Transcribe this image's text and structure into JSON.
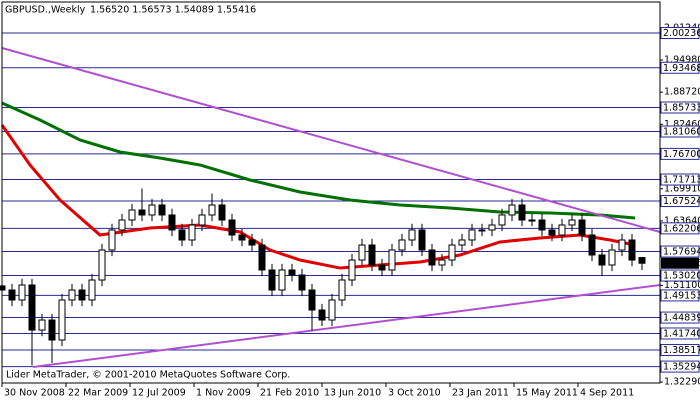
{
  "chart_data": {
    "type": "candlestick",
    "title": "GBPUSD.,Weekly",
    "quote": "1.56520 1.56573 1.54089 1.55416",
    "footer": "Lider MetaTrader, © 2001-2010 MetaQuotes Software Corp.",
    "xlim": [
      0,
      164.5
    ],
    "ylim": [
      1.321,
      2.0627
    ],
    "xticks": [
      {
        "value": 0,
        "label": "30 Nov 2008"
      },
      {
        "value": 16,
        "label": "22 Mar 2009"
      },
      {
        "value": 32,
        "label": "12 Jul 2009"
      },
      {
        "value": 48,
        "label": "1 Nov 2009"
      },
      {
        "value": 64,
        "label": "21 Feb 2010"
      },
      {
        "value": 80,
        "label": "13 Jun 2010"
      },
      {
        "value": 96,
        "label": "3 Oct 2010"
      },
      {
        "value": 112,
        "label": "23 Jan 2011"
      },
      {
        "value": 128,
        "label": "15 May 2011"
      },
      {
        "value": 144,
        "label": "4 Sep 2011"
      }
    ],
    "yticks": [
      {
        "value": 2.0124,
        "label": "2.01240"
      },
      {
        "value": 1.9498,
        "label": "1.94980"
      },
      {
        "value": 1.8872,
        "label": "1.88720"
      },
      {
        "value": 1.8246,
        "label": "1.82460"
      },
      {
        "value": 1.6991,
        "label": "1.69910"
      },
      {
        "value": 1.6364,
        "label": "1.63640"
      },
      {
        "value": 1.511,
        "label": "1.51100"
      },
      {
        "value": 1.3229,
        "label": "1.32290"
      }
    ],
    "up_color": "#ffffff",
    "down_color": "#000000",
    "candle_color": "#000000",
    "x": [
      0,
      2.5,
      5,
      7.5,
      10,
      12.5,
      15,
      17.5,
      20,
      22.5,
      25,
      27.5,
      30,
      32.5,
      35,
      37.5,
      40,
      42.5,
      45,
      47.5,
      50,
      52.5,
      55,
      57.5,
      60,
      62.5,
      65,
      67.5,
      70,
      72.5,
      75,
      77.5,
      80,
      82.5,
      85,
      87.5,
      90,
      92.5,
      95,
      97.5,
      100,
      102.5,
      105,
      107.5,
      110,
      112.5,
      115,
      117.5,
      120,
      122.5,
      125,
      127.5,
      130,
      132.5,
      135,
      137.5,
      140,
      142.5,
      145,
      147.5,
      150,
      152.5,
      155,
      157.5,
      160
    ],
    "ohlc": [
      [
        1.51,
        1.522,
        1.49,
        1.502
      ],
      [
        1.502,
        1.514,
        1.4706,
        1.4826
      ],
      [
        1.4826,
        1.5238,
        1.4706,
        1.5118
      ],
      [
        1.5118,
        1.5238,
        1.355,
        1.4241
      ],
      [
        1.4241,
        1.4556,
        1.4121,
        1.4436
      ],
      [
        1.4436,
        1.4556,
        1.36,
        1.4047
      ],
      [
        1.4047,
        1.4946,
        1.3927,
        1.4826
      ],
      [
        1.4826,
        1.514,
        1.4706,
        1.502
      ],
      [
        1.502,
        1.514,
        1.4706,
        1.4826
      ],
      [
        1.4826,
        1.5335,
        1.4706,
        1.5215
      ],
      [
        1.5215,
        1.5919,
        1.5095,
        1.5799
      ],
      [
        1.5799,
        1.6309,
        1.5679,
        1.6189
      ],
      [
        1.6189,
        1.6503,
        1.6069,
        1.6383
      ],
      [
        1.6383,
        1.6698,
        1.6263,
        1.6578
      ],
      [
        1.6578,
        1.7,
        1.6361,
        1.6481
      ],
      [
        1.6481,
        1.6795,
        1.6361,
        1.6675
      ],
      [
        1.6675,
        1.6795,
        1.6361,
        1.6481
      ],
      [
        1.6481,
        1.6601,
        1.6069,
        1.6189
      ],
      [
        1.6189,
        1.6309,
        1.5874,
        1.5994
      ],
      [
        1.5994,
        1.6406,
        1.5874,
        1.6286
      ],
      [
        1.6286,
        1.6601,
        1.6166,
        1.6481
      ],
      [
        1.6481,
        1.69,
        1.6361,
        1.6675
      ],
      [
        1.6675,
        1.6795,
        1.6263,
        1.6383
      ],
      [
        1.6383,
        1.6503,
        1.5971,
        1.6091
      ],
      [
        1.6091,
        1.6211,
        1.5874,
        1.5994
      ],
      [
        1.5994,
        1.6114,
        1.5776,
        1.5896
      ],
      [
        1.5896,
        1.6016,
        1.529,
        1.541
      ],
      [
        1.541,
        1.553,
        1.49,
        1.502
      ],
      [
        1.502,
        1.553,
        1.49,
        1.541
      ],
      [
        1.541,
        1.553,
        1.5192,
        1.5312
      ],
      [
        1.5312,
        1.5432,
        1.49,
        1.502
      ],
      [
        1.502,
        1.514,
        1.423,
        1.4631
      ],
      [
        1.4631,
        1.4751,
        1.4316,
        1.4436
      ],
      [
        1.4436,
        1.4946,
        1.4316,
        1.4826
      ],
      [
        1.4826,
        1.5335,
        1.4706,
        1.5215
      ],
      [
        1.5215,
        1.5724,
        1.5095,
        1.5604
      ],
      [
        1.5604,
        1.6016,
        1.5484,
        1.5896
      ],
      [
        1.5896,
        1.6016,
        1.5387,
        1.5507
      ],
      [
        1.5507,
        1.5627,
        1.529,
        1.541
      ],
      [
        1.541,
        1.5919,
        1.529,
        1.5799
      ],
      [
        1.5799,
        1.6114,
        1.5679,
        1.5994
      ],
      [
        1.5994,
        1.6309,
        1.5874,
        1.6189
      ],
      [
        1.6189,
        1.6309,
        1.5679,
        1.5799
      ],
      [
        1.5799,
        1.5919,
        1.5387,
        1.5507
      ],
      [
        1.5507,
        1.5724,
        1.5387,
        1.5604
      ],
      [
        1.5604,
        1.6016,
        1.5484,
        1.5896
      ],
      [
        1.5896,
        1.6114,
        1.5776,
        1.5994
      ],
      [
        1.5994,
        1.6309,
        1.5874,
        1.6189
      ],
      [
        1.6189,
        1.6309,
        1.6069,
        1.6189
      ],
      [
        1.6189,
        1.6406,
        1.6069,
        1.6286
      ],
      [
        1.6286,
        1.6601,
        1.6166,
        1.6481
      ],
      [
        1.6481,
        1.6795,
        1.6361,
        1.6675
      ],
      [
        1.6675,
        1.6795,
        1.6263,
        1.6383
      ],
      [
        1.6383,
        1.6503,
        1.6263,
        1.6383
      ],
      [
        1.6383,
        1.6503,
        1.6069,
        1.6189
      ],
      [
        1.6189,
        1.6309,
        1.5971,
        1.6091
      ],
      [
        1.6091,
        1.6406,
        1.5971,
        1.6286
      ],
      [
        1.6286,
        1.6503,
        1.6166,
        1.6383
      ],
      [
        1.6383,
        1.6503,
        1.5971,
        1.6091
      ],
      [
        1.6091,
        1.6211,
        1.5582,
        1.5702
      ],
      [
        1.5702,
        1.5822,
        1.529,
        1.5507
      ],
      [
        1.5507,
        1.5919,
        1.5387,
        1.5799
      ],
      [
        1.5799,
        1.6114,
        1.5679,
        1.5994
      ],
      [
        1.5994,
        1.6114,
        1.5484,
        1.5604
      ],
      [
        1.5652,
        1.56573,
        1.54089,
        1.55416
      ]
    ],
    "series": [
      {
        "color": "#e00000",
        "width": 3,
        "x": [
          0,
          7,
          14.5,
          24.5,
          37,
          49.5,
          59.5,
          67,
          74.5,
          84.5,
          94.5,
          104.5,
          114.5,
          124.5,
          134.5,
          144.5,
          152,
          158.25
        ],
        "values": [
          1.8233,
          1.7454,
          1.6773,
          1.6091,
          1.6227,
          1.6286,
          1.615,
          1.5799,
          1.5604,
          1.5448,
          1.5507,
          1.5565,
          1.5702,
          1.5955,
          1.6033,
          1.6091,
          1.5994,
          1.5896
        ]
      },
      {
        "color": "#007000",
        "width": 3,
        "x": [
          0,
          9.5,
          19.5,
          29.5,
          39.5,
          49.5,
          62,
          74.5,
          87,
          99.5,
          112,
          124.5,
          137,
          149.5,
          158.25
        ],
        "values": [
          1.8661,
          1.833,
          1.7941,
          1.7707,
          1.759,
          1.7454,
          1.7162,
          1.6928,
          1.6773,
          1.6675,
          1.6617,
          1.6539,
          1.652,
          1.6481,
          1.6422
        ]
      },
      {
        "color": "#b050d0",
        "width": 2,
        "x": [
          0,
          164.5
        ],
        "values": [
          1.9732,
          1.615
        ]
      },
      {
        "color": "#b050d0",
        "width": 2,
        "x": [
          7.75,
          164.5
        ],
        "values": [
          1.3521,
          1.5118
        ]
      }
    ],
    "level_color": "#2a2a9a",
    "levels": [
      2.00236,
      1.93468,
      1.85733,
      {
        "value": 1.8106,
        "label": "1.81060"
      },
      {
        "value": 1.767,
        "label": "1.76700"
      },
      1.71713,
      1.67524,
      1.62206,
      1.57694,
      {
        "value": 1.5302,
        "label": "1.53020"
      },
      1.49153,
      1.44839,
      {
        "value": 1.4174,
        "label": "1.41740"
      },
      1.38517,
      1.35294
    ],
    "last_price": 1.55416
  }
}
